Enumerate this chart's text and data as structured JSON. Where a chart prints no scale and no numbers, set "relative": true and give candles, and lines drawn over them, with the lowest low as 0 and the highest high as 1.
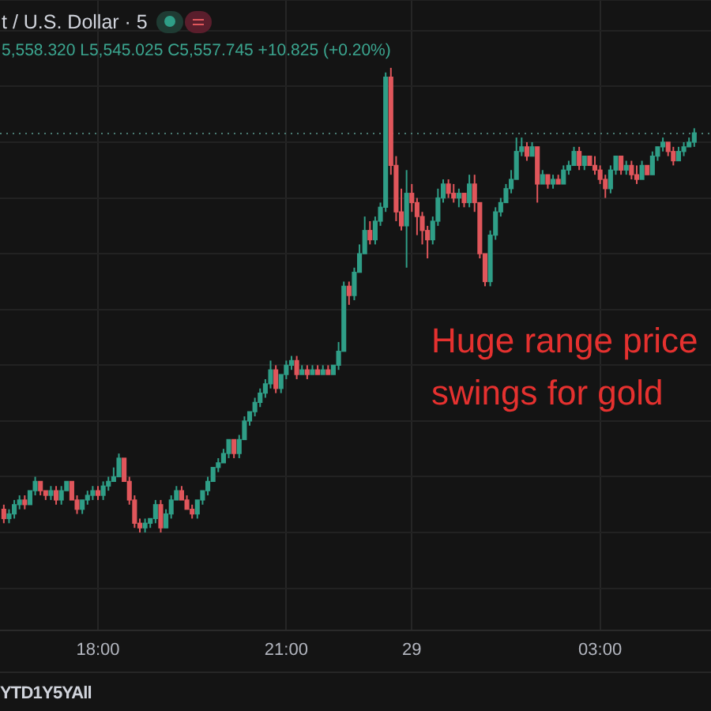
{
  "chart_data": {
    "type": "candlestick",
    "title": "t / U.S. Dollar · 5",
    "subtitle": "5,558.320 L5,545.025 C5,557.745 +10.825 (+0.20%)",
    "annotations": [
      "Huge range price swings for gold",
      "YTD1Y5YAll"
    ],
    "relative": true,
    "grid": true,
    "ref_lines": [
      {
        "axis": "y",
        "value": 0.86,
        "color": "#4a7a72",
        "line_style": "dotted"
      }
    ],
    "categories": [
      null,
      null,
      null,
      null,
      null,
      null,
      null,
      null,
      null,
      null,
      null,
      null,
      null,
      null,
      null,
      null,
      null,
      null,
      "18:00",
      null,
      null,
      null,
      null,
      null,
      null,
      null,
      null,
      null,
      null,
      null,
      null,
      null,
      null,
      null,
      null,
      null,
      null,
      null,
      null,
      null,
      null,
      null,
      null,
      null,
      null,
      null,
      null,
      null,
      null,
      null,
      null,
      null,
      null,
      null,
      "21:00",
      null,
      null,
      null,
      null,
      null,
      null,
      null,
      null,
      null,
      null,
      null,
      null,
      null,
      null,
      null,
      null,
      null,
      null,
      null,
      null,
      null,
      null,
      null,
      "29",
      null,
      null,
      null,
      null,
      null,
      null,
      null,
      null,
      null,
      null,
      null,
      null,
      null,
      null,
      null,
      null,
      null,
      null,
      null,
      null,
      null,
      null,
      null,
      null,
      null,
      null,
      null,
      null,
      null,
      null,
      null,
      null,
      null,
      null,
      null,
      "03:00",
      null,
      null,
      null,
      null,
      null,
      null,
      null,
      null,
      null,
      null,
      null,
      null,
      null,
      null,
      null,
      null,
      null,
      null
    ],
    "ohlc": [
      [
        0.05,
        0.06,
        0.02,
        0.03
      ],
      [
        0.03,
        0.05,
        0.02,
        0.04
      ],
      [
        0.04,
        0.07,
        0.03,
        0.06
      ],
      [
        0.06,
        0.08,
        0.05,
        0.07
      ],
      [
        0.07,
        0.08,
        0.05,
        0.06
      ],
      [
        0.06,
        0.09,
        0.06,
        0.09
      ],
      [
        0.09,
        0.12,
        0.08,
        0.11
      ],
      [
        0.11,
        0.11,
        0.08,
        0.09
      ],
      [
        0.09,
        0.09,
        0.07,
        0.08
      ],
      [
        0.08,
        0.1,
        0.07,
        0.09
      ],
      [
        0.09,
        0.1,
        0.06,
        0.07
      ],
      [
        0.07,
        0.1,
        0.06,
        0.09
      ],
      [
        0.09,
        0.11,
        0.09,
        0.11
      ],
      [
        0.11,
        0.11,
        0.07,
        0.07
      ],
      [
        0.07,
        0.08,
        0.04,
        0.05
      ],
      [
        0.05,
        0.07,
        0.04,
        0.07
      ],
      [
        0.07,
        0.09,
        0.06,
        0.08
      ],
      [
        0.08,
        0.1,
        0.07,
        0.09
      ],
      [
        0.09,
        0.1,
        0.07,
        0.08
      ],
      [
        0.08,
        0.11,
        0.07,
        0.1
      ],
      [
        0.1,
        0.12,
        0.09,
        0.11
      ],
      [
        0.11,
        0.14,
        0.11,
        0.12
      ],
      [
        0.12,
        0.17,
        0.12,
        0.16
      ],
      [
        0.16,
        0.16,
        0.11,
        0.11
      ],
      [
        0.11,
        0.12,
        0.06,
        0.07
      ],
      [
        0.07,
        0.08,
        0.01,
        0.02
      ],
      [
        0.02,
        0.03,
        0.0,
        0.01
      ],
      [
        0.01,
        0.03,
        0.0,
        0.02
      ],
      [
        0.02,
        0.03,
        0.01,
        0.03
      ],
      [
        0.03,
        0.07,
        0.02,
        0.06
      ],
      [
        0.06,
        0.07,
        0.0,
        0.01
      ],
      [
        0.01,
        0.05,
        0.01,
        0.04
      ],
      [
        0.04,
        0.08,
        0.03,
        0.07
      ],
      [
        0.07,
        0.1,
        0.07,
        0.09
      ],
      [
        0.09,
        0.1,
        0.07,
        0.07
      ],
      [
        0.07,
        0.08,
        0.05,
        0.05
      ],
      [
        0.05,
        0.06,
        0.03,
        0.04
      ],
      [
        0.04,
        0.07,
        0.03,
        0.07
      ],
      [
        0.07,
        0.09,
        0.06,
        0.09
      ],
      [
        0.09,
        0.12,
        0.08,
        0.11
      ],
      [
        0.11,
        0.14,
        0.11,
        0.14
      ],
      [
        0.14,
        0.16,
        0.13,
        0.15
      ],
      [
        0.15,
        0.18,
        0.15,
        0.17
      ],
      [
        0.17,
        0.2,
        0.16,
        0.2
      ],
      [
        0.2,
        0.2,
        0.16,
        0.17
      ],
      [
        0.17,
        0.21,
        0.16,
        0.2
      ],
      [
        0.2,
        0.25,
        0.2,
        0.24
      ],
      [
        0.24,
        0.26,
        0.23,
        0.26
      ],
      [
        0.26,
        0.29,
        0.25,
        0.28
      ],
      [
        0.28,
        0.31,
        0.27,
        0.3
      ],
      [
        0.3,
        0.33,
        0.29,
        0.32
      ],
      [
        0.32,
        0.37,
        0.31,
        0.35
      ],
      [
        0.35,
        0.36,
        0.3,
        0.31
      ],
      [
        0.31,
        0.34,
        0.3,
        0.34
      ],
      [
        0.34,
        0.37,
        0.33,
        0.36
      ],
      [
        0.36,
        0.38,
        0.35,
        0.37
      ],
      [
        0.37,
        0.38,
        0.33,
        0.34
      ],
      [
        0.34,
        0.36,
        0.34,
        0.35
      ],
      [
        0.35,
        0.36,
        0.33,
        0.34
      ],
      [
        0.34,
        0.36,
        0.34,
        0.35
      ],
      [
        0.35,
        0.36,
        0.34,
        0.34
      ],
      [
        0.34,
        0.36,
        0.34,
        0.35
      ],
      [
        0.35,
        0.36,
        0.34,
        0.34
      ],
      [
        0.34,
        0.36,
        0.34,
        0.36
      ],
      [
        0.36,
        0.41,
        0.35,
        0.39
      ],
      [
        0.39,
        0.54,
        0.39,
        0.53
      ],
      [
        0.53,
        0.54,
        0.49,
        0.51
      ],
      [
        0.51,
        0.57,
        0.5,
        0.56
      ],
      [
        0.56,
        0.62,
        0.56,
        0.6
      ],
      [
        0.6,
        0.68,
        0.6,
        0.65
      ],
      [
        0.65,
        0.67,
        0.62,
        0.63
      ],
      [
        0.63,
        0.68,
        0.62,
        0.67
      ],
      [
        0.67,
        0.71,
        0.66,
        0.7
      ],
      [
        0.7,
        0.99,
        0.69,
        0.98
      ],
      [
        0.98,
        1.0,
        0.77,
        0.79
      ],
      [
        0.79,
        0.81,
        0.67,
        0.69
      ],
      [
        0.69,
        0.74,
        0.65,
        0.66
      ],
      [
        0.66,
        0.78,
        0.57,
        0.73
      ],
      [
        0.73,
        0.75,
        0.69,
        0.71
      ],
      [
        0.71,
        0.72,
        0.64,
        0.68
      ],
      [
        0.68,
        0.69,
        0.62,
        0.65
      ],
      [
        0.65,
        0.66,
        0.59,
        0.63
      ],
      [
        0.63,
        0.68,
        0.62,
        0.67
      ],
      [
        0.67,
        0.74,
        0.66,
        0.72
      ],
      [
        0.72,
        0.76,
        0.71,
        0.75
      ],
      [
        0.75,
        0.76,
        0.72,
        0.73
      ],
      [
        0.73,
        0.75,
        0.71,
        0.72
      ],
      [
        0.72,
        0.74,
        0.7,
        0.73
      ],
      [
        0.73,
        0.73,
        0.7,
        0.71
      ],
      [
        0.71,
        0.77,
        0.7,
        0.75
      ],
      [
        0.75,
        0.77,
        0.69,
        0.71
      ],
      [
        0.71,
        0.71,
        0.59,
        0.6
      ],
      [
        0.6,
        0.6,
        0.53,
        0.54
      ],
      [
        0.54,
        0.65,
        0.53,
        0.64
      ],
      [
        0.64,
        0.7,
        0.63,
        0.69
      ],
      [
        0.69,
        0.72,
        0.68,
        0.71
      ],
      [
        0.71,
        0.75,
        0.71,
        0.74
      ],
      [
        0.74,
        0.78,
        0.73,
        0.76
      ],
      [
        0.76,
        0.85,
        0.76,
        0.82
      ],
      [
        0.82,
        0.85,
        0.81,
        0.83
      ],
      [
        0.83,
        0.84,
        0.8,
        0.81
      ],
      [
        0.81,
        0.84,
        0.81,
        0.83
      ],
      [
        0.83,
        0.83,
        0.71,
        0.75
      ],
      [
        0.75,
        0.78,
        0.75,
        0.77
      ],
      [
        0.77,
        0.77,
        0.74,
        0.75
      ],
      [
        0.75,
        0.77,
        0.74,
        0.76
      ],
      [
        0.76,
        0.77,
        0.75,
        0.75
      ],
      [
        0.75,
        0.79,
        0.75,
        0.78
      ],
      [
        0.78,
        0.8,
        0.77,
        0.79
      ],
      [
        0.79,
        0.83,
        0.79,
        0.82
      ],
      [
        0.82,
        0.83,
        0.78,
        0.79
      ],
      [
        0.79,
        0.81,
        0.78,
        0.81
      ],
      [
        0.81,
        0.81,
        0.79,
        0.79
      ],
      [
        0.79,
        0.81,
        0.77,
        0.78
      ],
      [
        0.78,
        0.79,
        0.75,
        0.76
      ],
      [
        0.76,
        0.77,
        0.72,
        0.74
      ],
      [
        0.74,
        0.79,
        0.73,
        0.78
      ],
      [
        0.78,
        0.81,
        0.77,
        0.81
      ],
      [
        0.81,
        0.81,
        0.77,
        0.78
      ],
      [
        0.78,
        0.8,
        0.77,
        0.79
      ],
      [
        0.79,
        0.8,
        0.76,
        0.77
      ],
      [
        0.77,
        0.79,
        0.75,
        0.76
      ],
      [
        0.76,
        0.8,
        0.76,
        0.79
      ],
      [
        0.79,
        0.79,
        0.77,
        0.77
      ],
      [
        0.77,
        0.82,
        0.77,
        0.81
      ],
      [
        0.81,
        0.83,
        0.8,
        0.83
      ],
      [
        0.83,
        0.85,
        0.82,
        0.84
      ],
      [
        0.84,
        0.84,
        0.81,
        0.82
      ],
      [
        0.82,
        0.83,
        0.79,
        0.8
      ],
      [
        0.8,
        0.83,
        0.8,
        0.82
      ],
      [
        0.82,
        0.84,
        0.81,
        0.83
      ],
      [
        0.83,
        0.85,
        0.83,
        0.84
      ],
      [
        0.84,
        0.87,
        0.83,
        0.86
      ]
    ],
    "colors": [
      "#e0565b",
      "#2f9e87",
      "#2f9e87",
      "#2f9e87",
      "#e0565b",
      "#2f9e87",
      "#2f9e87",
      "#e0565b",
      "#e0565b",
      "#2f9e87",
      "#e0565b",
      "#2f9e87",
      "#2f9e87",
      "#e0565b",
      "#e0565b",
      "#2f9e87",
      "#2f9e87",
      "#2f9e87",
      "#e0565b",
      "#2f9e87",
      "#2f9e87",
      "#2f9e87",
      "#2f9e87",
      "#e0565b",
      "#e0565b",
      "#e0565b",
      "#e0565b",
      "#2f9e87",
      "#2f9e87",
      "#2f9e87",
      "#e0565b",
      "#2f9e87",
      "#2f9e87",
      "#2f9e87",
      "#e0565b",
      "#e0565b",
      "#e0565b",
      "#2f9e87",
      "#2f9e87",
      "#2f9e87",
      "#2f9e87",
      "#2f9e87",
      "#2f9e87",
      "#2f9e87",
      "#e0565b",
      "#2f9e87",
      "#2f9e87",
      "#2f9e87",
      "#2f9e87",
      "#2f9e87",
      "#2f9e87",
      "#2f9e87",
      "#e0565b",
      "#2f9e87",
      "#2f9e87",
      "#2f9e87",
      "#e0565b",
      "#2f9e87",
      "#e0565b",
      "#2f9e87",
      "#e0565b",
      "#2f9e87",
      "#e0565b",
      "#2f9e87",
      "#2f9e87",
      "#2f9e87",
      "#e0565b",
      "#2f9e87",
      "#2f9e87",
      "#2f9e87",
      "#e0565b",
      "#2f9e87",
      "#2f9e87",
      "#2f9e87",
      "#e0565b",
      "#e0565b",
      "#e0565b",
      "#2f9e87",
      "#e0565b",
      "#e0565b",
      "#e0565b",
      "#e0565b",
      "#2f9e87",
      "#2f9e87",
      "#2f9e87",
      "#e0565b",
      "#e0565b",
      "#2f9e87",
      "#e0565b",
      "#2f9e87",
      "#e0565b",
      "#e0565b",
      "#e0565b",
      "#2f9e87",
      "#2f9e87",
      "#2f9e87",
      "#2f9e87",
      "#2f9e87",
      "#2f9e87",
      "#2f9e87",
      "#e0565b",
      "#2f9e87",
      "#e0565b",
      "#2f9e87",
      "#e0565b",
      "#2f9e87",
      "#e0565b",
      "#2f9e87",
      "#2f9e87",
      "#2f9e87",
      "#e0565b",
      "#2f9e87",
      "#e0565b",
      "#e0565b",
      "#e0565b",
      "#e0565b",
      "#2f9e87",
      "#2f9e87",
      "#e0565b",
      "#2f9e87",
      "#e0565b",
      "#e0565b",
      "#2f9e87",
      "#e0565b",
      "#2f9e87",
      "#2f9e87",
      "#2f9e87",
      "#e0565b",
      "#e0565b",
      "#2f9e87",
      "#2f9e87",
      "#2f9e87",
      "#2f9e87"
    ]
  }
}
